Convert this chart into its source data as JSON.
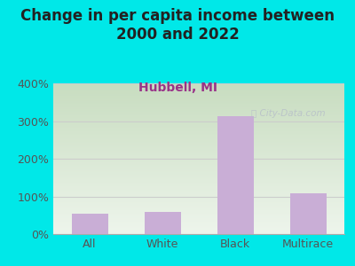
{
  "title": "Change in per capita income between\n2000 and 2022",
  "subtitle": "Hubbell, MI",
  "categories": [
    "All",
    "White",
    "Black",
    "Multirace"
  ],
  "values": [
    55,
    58,
    315,
    108
  ],
  "bar_color": "#c9aed6",
  "background_color": "#00e8e8",
  "plot_bg_top": "#c8ddc0",
  "plot_bg_bottom": "#eef5ec",
  "title_fontsize": 12,
  "subtitle_fontsize": 10,
  "subtitle_color": "#993388",
  "tick_color": "#555555",
  "ylim": [
    0,
    400
  ],
  "yticks": [
    0,
    100,
    200,
    300,
    400
  ],
  "ytick_labels": [
    "0%",
    "100%",
    "200%",
    "300%",
    "400%"
  ],
  "watermark": "City-Data.com",
  "watermark_color": "#b8c0c8"
}
